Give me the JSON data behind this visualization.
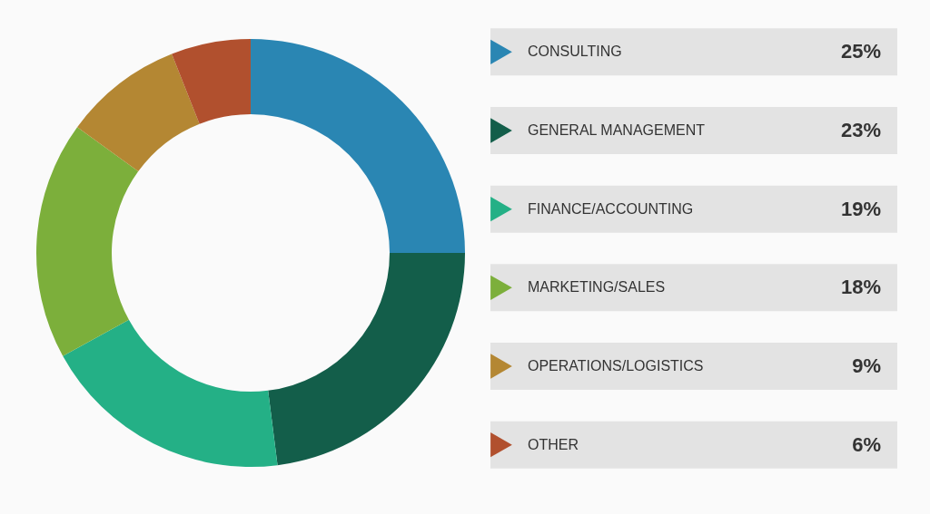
{
  "chart_data": {
    "type": "donut",
    "legend": "right",
    "categories": [
      "CONSULTING",
      "GENERAL MANAGEMENT",
      "FINANCE/ACCOUNTING",
      "MARKETING/SALES",
      "OPERATIONS/LOGISTICS",
      "OTHER"
    ],
    "values": [
      25,
      23,
      19,
      18,
      9,
      6
    ],
    "value_labels": [
      "25%",
      "23%",
      "19%",
      "18%",
      "9%",
      "6%"
    ],
    "colors": [
      "#2a86b3",
      "#135e4a",
      "#24b086",
      "#7caf3b",
      "#b48733",
      "#b1502e"
    ]
  }
}
